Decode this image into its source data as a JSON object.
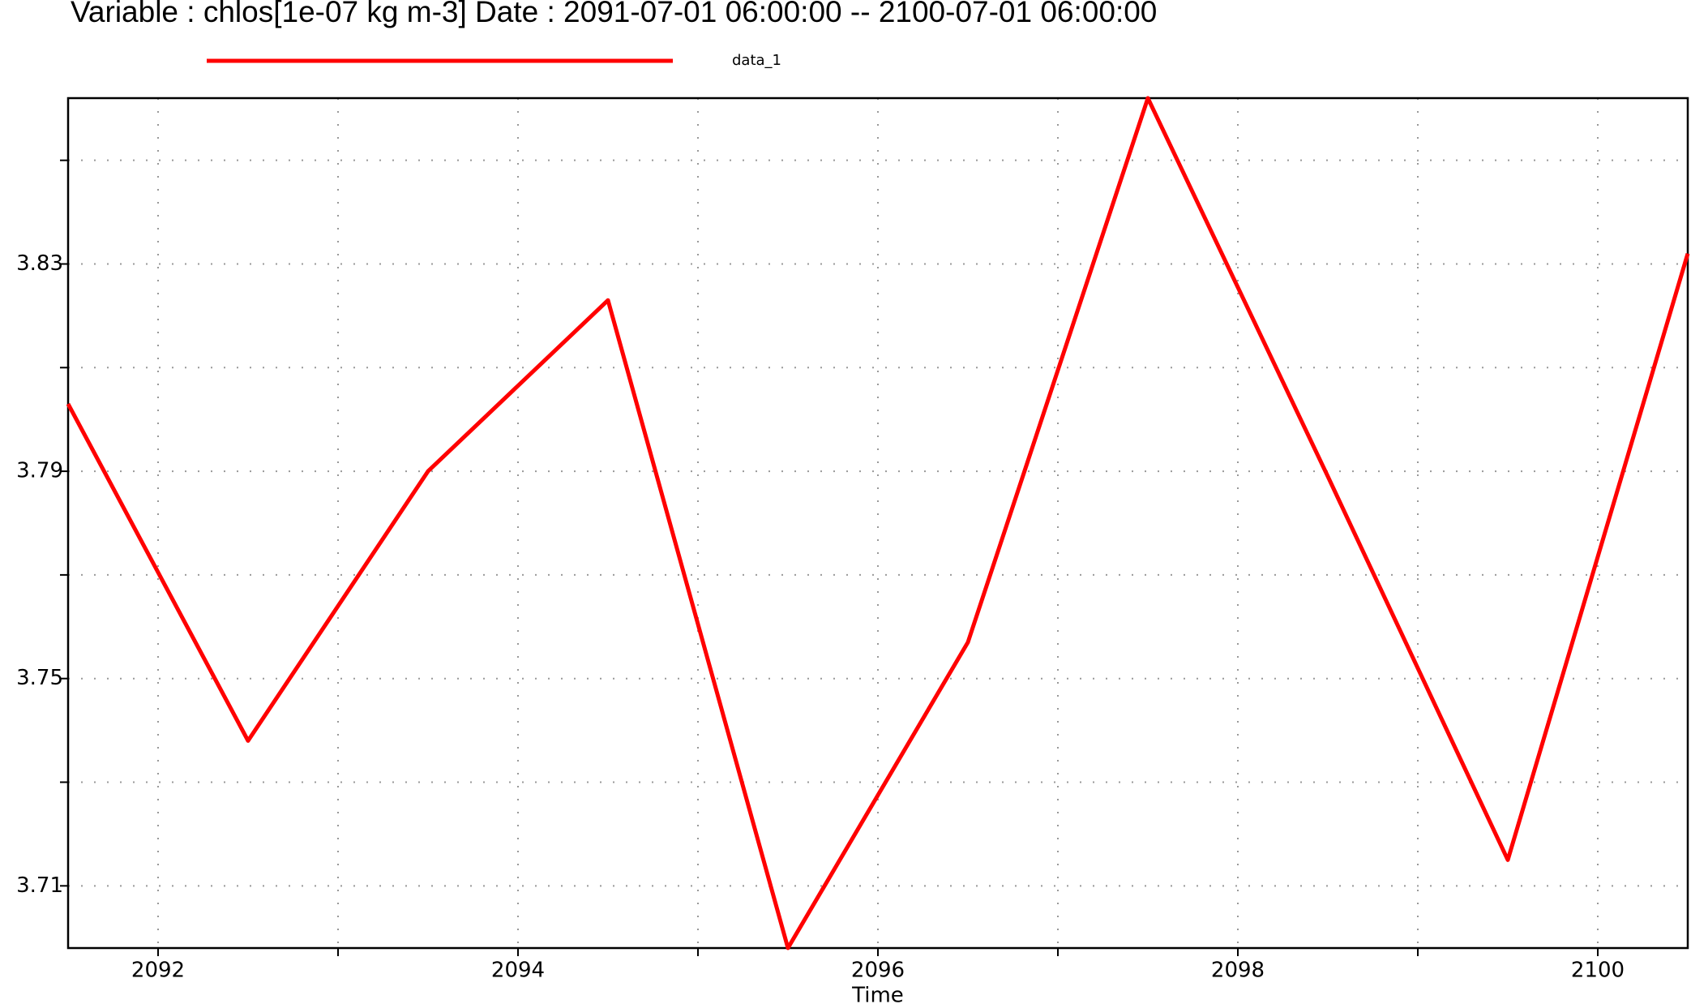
{
  "chart_data": {
    "type": "line",
    "title": "Variable : chlos[1e-07 kg m-3]  Date :  2091-07-01 06:00:00 -- 2100-07-01 06:00:00",
    "x_label": "Time",
    "x": [
      2091.5,
      2092.5,
      2093.5,
      2094.5,
      2095.5,
      2096.5,
      2097.5,
      2098.5,
      2099.5,
      2100.5
    ],
    "series": [
      {
        "name": "data_1",
        "color": "#ff0000",
        "values": [
          3.803,
          3.738,
          3.79,
          3.823,
          3.698,
          3.757,
          3.862,
          3.789,
          3.715,
          3.832
        ]
      }
    ],
    "xlim": [
      2091.5,
      2100.5
    ],
    "xticks": [
      2092,
      2094,
      2096,
      2098,
      2100
    ],
    "xminor_ticks": [
      2093,
      2095,
      2097,
      2099
    ],
    "ylim": [
      3.698,
      3.862
    ],
    "yticks": [
      3.71,
      3.75,
      3.79,
      3.83
    ],
    "yminor_ticks": [
      3.73,
      3.77,
      3.81,
      3.85
    ],
    "grid": true
  }
}
